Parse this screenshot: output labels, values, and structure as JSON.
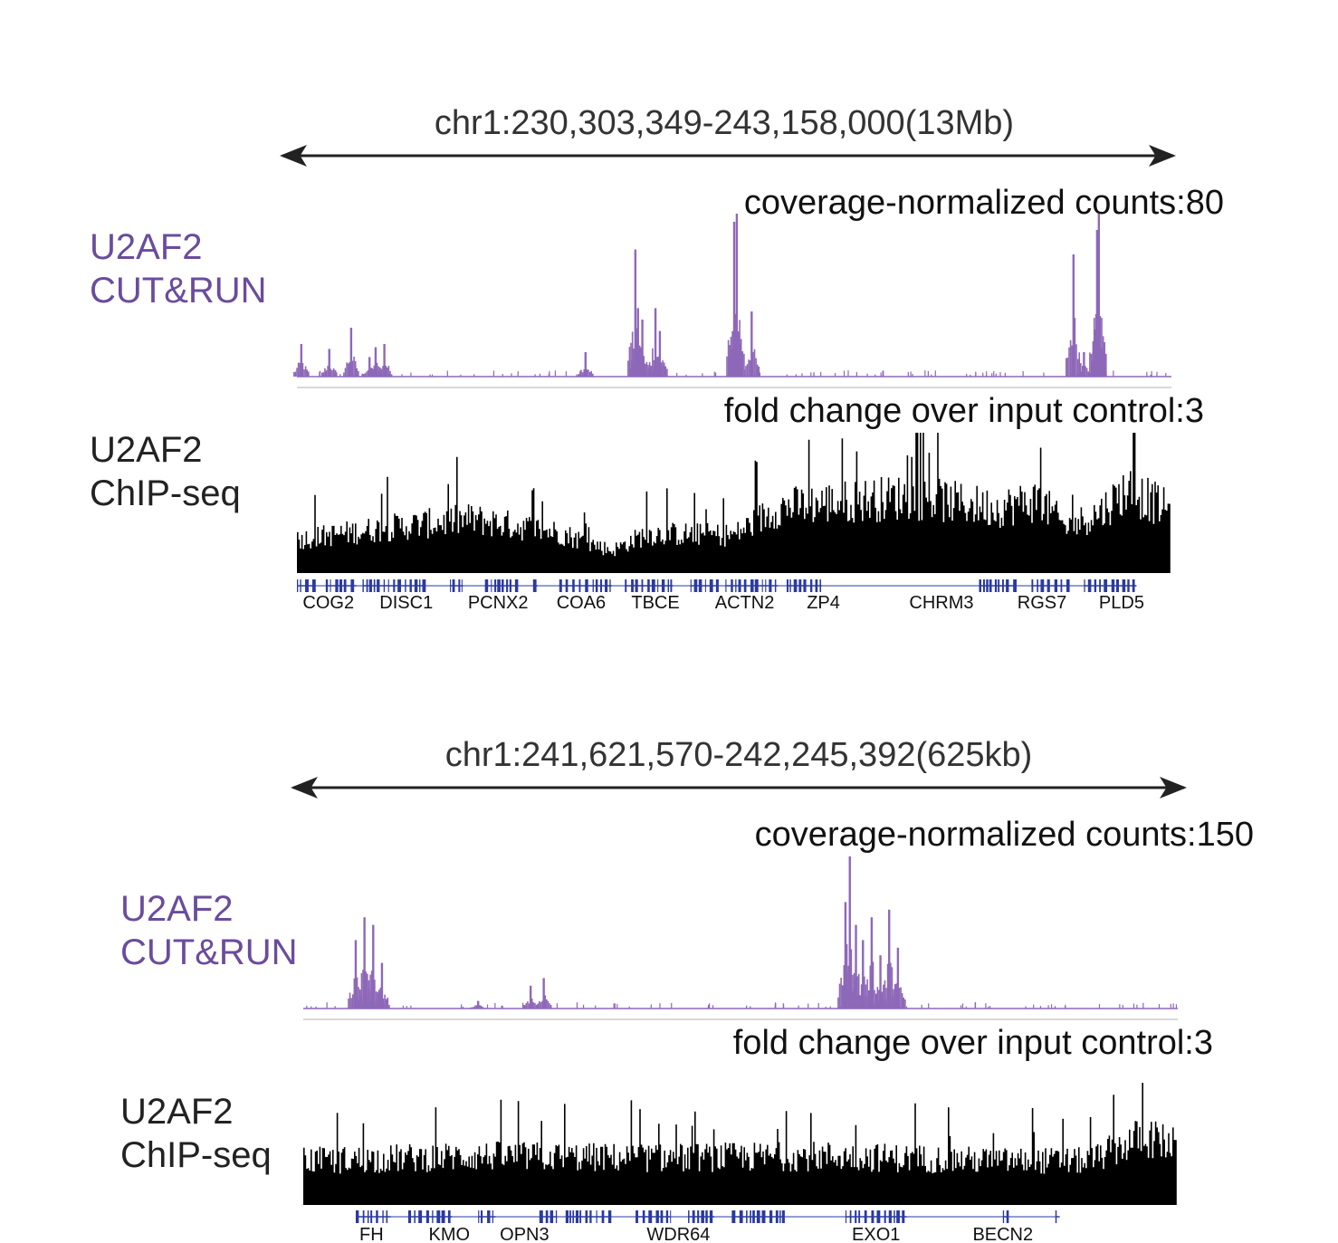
{
  "colors": {
    "cutrun": "#8e68b8",
    "cutrun_label": "#6a4c9c",
    "chip": "#000000",
    "gene": "#2a3aa0"
  },
  "panels": [
    {
      "region": "chr1:230,303,349-243,158,000(13Mb)",
      "cutrun": {
        "label_line1": "U2AF2",
        "label_line2": "CUT&RUN",
        "scale": "coverage-normalized counts:80",
        "peaks": [
          [
            0.005,
            0.2
          ],
          [
            0.037,
            0.17
          ],
          [
            0.062,
            0.3
          ],
          [
            0.083,
            0.12
          ],
          [
            0.09,
            0.18
          ],
          [
            0.1,
            0.2
          ],
          [
            0.33,
            0.15
          ],
          [
            0.387,
            0.78
          ],
          [
            0.39,
            0.42
          ],
          [
            0.395,
            0.35
          ],
          [
            0.41,
            0.42
          ],
          [
            0.415,
            0.28
          ],
          [
            0.5,
            0.95
          ],
          [
            0.503,
            1.0
          ],
          [
            0.52,
            0.4
          ],
          [
            0.888,
            0.75
          ],
          [
            0.9,
            0.15
          ],
          [
            0.915,
            0.9
          ],
          [
            0.917,
            1.0
          ]
        ]
      },
      "chip": {
        "label_line1": "U2AF2",
        "label_line2": "ChIP-seq",
        "scale": "fold change over input control:3",
        "envelope": [
          [
            0.0,
            0.3
          ],
          [
            0.1,
            0.4
          ],
          [
            0.2,
            0.48
          ],
          [
            0.3,
            0.36
          ],
          [
            0.36,
            0.2
          ],
          [
            0.4,
            0.35
          ],
          [
            0.5,
            0.34
          ],
          [
            0.55,
            0.58
          ],
          [
            0.6,
            0.62
          ],
          [
            0.7,
            0.68
          ],
          [
            0.8,
            0.58
          ],
          [
            0.85,
            0.65
          ],
          [
            0.88,
            0.4
          ],
          [
            0.92,
            0.55
          ],
          [
            0.95,
            0.75
          ],
          [
            1.0,
            0.55
          ]
        ]
      },
      "genes": {
        "names": [
          "COG2",
          "DISC1",
          "PCNX2",
          "COA6",
          "TBCE",
          "ACTN2",
          "ZP4",
          "CHRM3",
          "RGS7",
          "PLD5"
        ],
        "name_pos": [
          0.036,
          0.125,
          0.23,
          0.325,
          0.41,
          0.512,
          0.602,
          0.737,
          0.852,
          0.943
        ],
        "blocks": [
          [
            0.0,
            0.02
          ],
          [
            0.033,
            0.068
          ],
          [
            0.075,
            0.145
          ],
          [
            0.175,
            0.19
          ],
          [
            0.215,
            0.25
          ],
          [
            0.27,
            0.275
          ],
          [
            0.3,
            0.36
          ],
          [
            0.375,
            0.43
          ],
          [
            0.45,
            0.48
          ],
          [
            0.49,
            0.55
          ],
          [
            0.56,
            0.6
          ],
          [
            0.78,
            0.82
          ],
          [
            0.84,
            0.88
          ],
          [
            0.9,
            0.96
          ]
        ]
      }
    },
    {
      "region": "chr1:241,621,570-242,245,392(625kb)",
      "cutrun": {
        "label_line1": "U2AF2",
        "label_line2": "CUT&RUN",
        "scale": "coverage-normalized counts:150",
        "peaks": [
          [
            0.06,
            0.45
          ],
          [
            0.07,
            0.6
          ],
          [
            0.08,
            0.55
          ],
          [
            0.09,
            0.3
          ],
          [
            0.2,
            0.05
          ],
          [
            0.26,
            0.15
          ],
          [
            0.275,
            0.2
          ],
          [
            0.62,
            0.7
          ],
          [
            0.625,
            1.0
          ],
          [
            0.632,
            0.55
          ],
          [
            0.64,
            0.45
          ],
          [
            0.65,
            0.6
          ],
          [
            0.66,
            0.35
          ],
          [
            0.67,
            0.65
          ],
          [
            0.68,
            0.4
          ]
        ]
      },
      "chip": {
        "label_line1": "U2AF2",
        "label_line2": "ChIP-seq",
        "scale": "fold change over input control:3",
        "envelope": [
          [
            0.0,
            0.45
          ],
          [
            0.2,
            0.5
          ],
          [
            0.4,
            0.48
          ],
          [
            0.6,
            0.5
          ],
          [
            0.8,
            0.45
          ],
          [
            0.9,
            0.45
          ],
          [
            0.96,
            0.7
          ],
          [
            1.0,
            0.6
          ]
        ]
      },
      "genes": {
        "names": [
          "FH",
          "KMO",
          "OPN3",
          "WDR64",
          "EXO1",
          "BECN2"
        ],
        "name_pos": [
          0.078,
          0.167,
          0.253,
          0.429,
          0.655,
          0.8
        ],
        "blocks": [
          [
            0.06,
            0.1
          ],
          [
            0.12,
            0.17
          ],
          [
            0.2,
            0.22
          ],
          [
            0.27,
            0.29
          ],
          [
            0.3,
            0.35
          ],
          [
            0.38,
            0.42
          ],
          [
            0.44,
            0.47
          ],
          [
            0.49,
            0.55
          ],
          [
            0.62,
            0.69
          ],
          [
            0.8,
            0.805
          ],
          [
            0.86,
            0.865
          ]
        ]
      }
    }
  ]
}
